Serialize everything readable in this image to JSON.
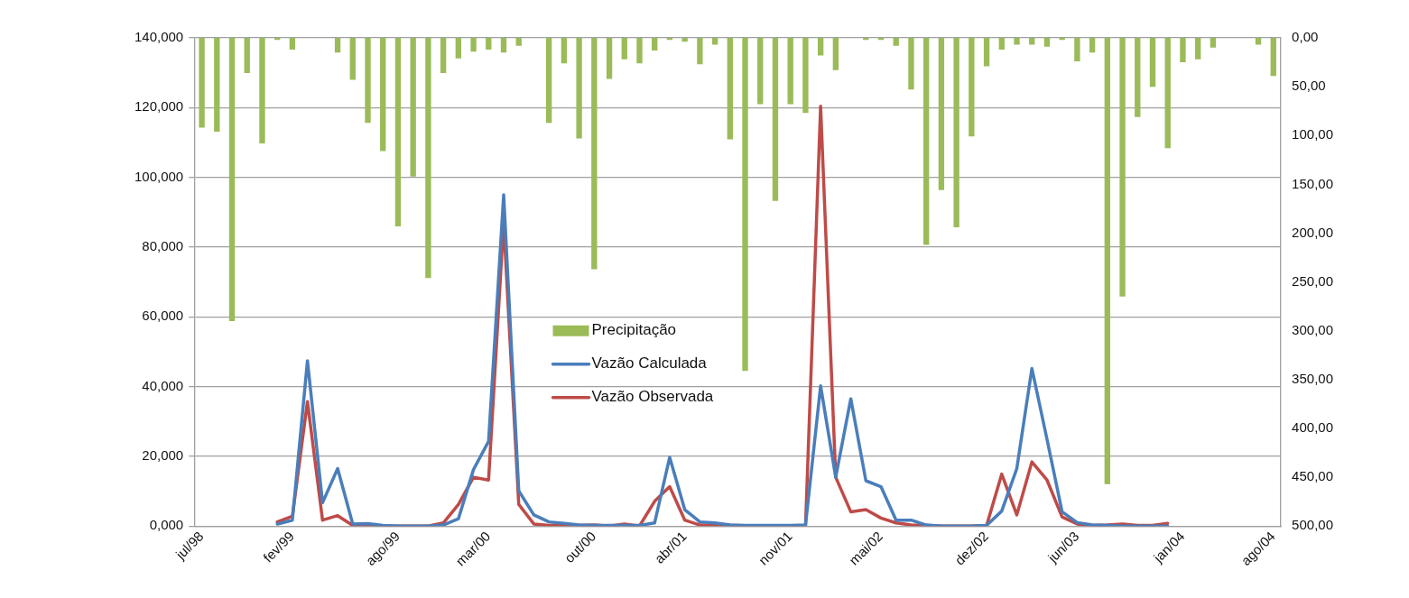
{
  "chart_data": {
    "type": "bar",
    "categories": [
      "jul/98",
      null,
      null,
      null,
      null,
      null,
      "fev/99",
      null,
      null,
      null,
      null,
      null,
      null,
      "ago/99",
      null,
      null,
      null,
      null,
      null,
      "mar/00",
      null,
      null,
      null,
      null,
      null,
      null,
      "out/00",
      null,
      null,
      null,
      null,
      null,
      "abr/01",
      null,
      null,
      null,
      null,
      null,
      null,
      "nov/01",
      null,
      null,
      null,
      null,
      null,
      "mai/02",
      null,
      null,
      null,
      null,
      null,
      null,
      "dez/02",
      null,
      null,
      null,
      null,
      null,
      "jun/03",
      null,
      null,
      null,
      null,
      null,
      null,
      "jan/04",
      null,
      null,
      null,
      null,
      null,
      "ago/04"
    ],
    "series": [
      {
        "name": "Precipitação",
        "axis": "y2",
        "color": "#9bbb59",
        "values": [
          92,
          96,
          290,
          36,
          108,
          2,
          12,
          0,
          0,
          15,
          43,
          87,
          116,
          193,
          142,
          246,
          36,
          21,
          14,
          12,
          15,
          8,
          0,
          87,
          26,
          103,
          237,
          42,
          22,
          26,
          13,
          2,
          4,
          27,
          7,
          104,
          341,
          68,
          167,
          68,
          77,
          18,
          33,
          0,
          2,
          2,
          8,
          53,
          212,
          156,
          194,
          101,
          29,
          12,
          7,
          7,
          9,
          2,
          24,
          15,
          457,
          265,
          81,
          50,
          113,
          25,
          22,
          10,
          0,
          0,
          7,
          39
        ]
      },
      {
        "name": "Vazão Calculada",
        "type": "line",
        "color": "#4a7ebb",
        "values": [
          null,
          null,
          null,
          null,
          null,
          0.6,
          1.7,
          47.4,
          6.7,
          16.5,
          0.6,
          0.7,
          0.2,
          0,
          0,
          0,
          0.3,
          2.1,
          16.2,
          24.3,
          95.0,
          10.1,
          3.2,
          1.2,
          0.8,
          0.3,
          0.2,
          0.2,
          0.2,
          0.2,
          0.9,
          19.7,
          4.7,
          1.2,
          0.9,
          0.3,
          0.2,
          0.2,
          0.2,
          0.2,
          0.3,
          40.2,
          14.0,
          36.5,
          13.0,
          11.3,
          1.7,
          1.7,
          0.3,
          0,
          0,
          0,
          0.2,
          4.3,
          16.5,
          45.2,
          24.9,
          4.1,
          1.0,
          0.3,
          0.2,
          0,
          0,
          0,
          0,
          null,
          null,
          null,
          null,
          null,
          null,
          null
        ]
      },
      {
        "name": "Vazão Observada",
        "type": "line",
        "color": "#be4b48",
        "values": [
          null,
          null,
          null,
          null,
          null,
          1.2,
          2.8,
          35.7,
          1.7,
          3.0,
          0.2,
          0.2,
          0,
          0,
          0,
          0,
          0.9,
          6.2,
          14.0,
          13.2,
          87.2,
          6.2,
          0.6,
          0.2,
          0.3,
          0.2,
          0.3,
          0,
          0.6,
          0,
          7.1,
          11.3,
          1.7,
          0.3,
          0.2,
          0.2,
          0.1,
          0.1,
          0.1,
          0.1,
          0,
          120.4,
          14.0,
          4.1,
          4.7,
          2.3,
          0.9,
          0.3,
          0.2,
          0,
          0,
          0,
          0.2,
          14.9,
          3.2,
          18.4,
          13.2,
          2.6,
          0.6,
          0.2,
          0.3,
          0.6,
          0.2,
          0.2,
          0.8,
          null,
          null,
          null,
          null,
          null,
          null,
          null
        ]
      }
    ],
    "ylim": [
      0,
      140
    ],
    "yticks": [
      {
        "value": 0,
        "label": "0,000"
      },
      {
        "value": 20,
        "label": "20,000"
      },
      {
        "value": 40,
        "label": "40,000"
      },
      {
        "value": 60,
        "label": "60,000"
      },
      {
        "value": 80,
        "label": "80,000"
      },
      {
        "value": 100,
        "label": "100,000"
      },
      {
        "value": 120,
        "label": "120,000"
      },
      {
        "value": 140,
        "label": "140,000"
      }
    ],
    "y2lim": [
      500,
      0
    ],
    "y2ticks": [
      {
        "value": 0,
        "label": "0,00"
      },
      {
        "value": 50,
        "label": "50,00"
      },
      {
        "value": 100,
        "label": "100,00"
      },
      {
        "value": 150,
        "label": "150,00"
      },
      {
        "value": 200,
        "label": "200,00"
      },
      {
        "value": 250,
        "label": "250,00"
      },
      {
        "value": 300,
        "label": "300,00"
      },
      {
        "value": 350,
        "label": "350,00"
      },
      {
        "value": 400,
        "label": "400,00"
      },
      {
        "value": 450,
        "label": "450,00"
      },
      {
        "value": 500,
        "label": "500,00"
      }
    ],
    "grid": "y",
    "legend": "center left",
    "marker": "none",
    "line_style": "solid"
  }
}
